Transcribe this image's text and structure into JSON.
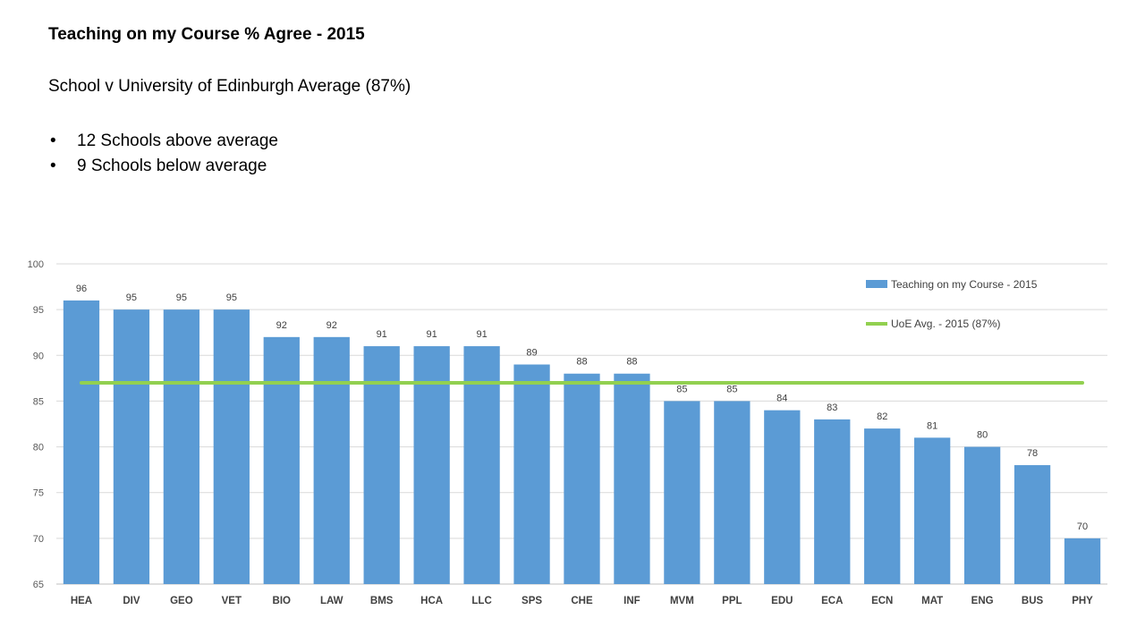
{
  "slide": {
    "title": "Teaching on my Course % Agree - 2015",
    "subtitle": "School v University of Edinburgh Average (87%)",
    "bullets": [
      "12 Schools above average",
      "9 Schools below average"
    ],
    "bullet_symbol": "•"
  },
  "chart_data": {
    "type": "bar",
    "categories": [
      "HEA",
      "DIV",
      "GEO",
      "VET",
      "BIO",
      "LAW",
      "BMS",
      "HCA",
      "LLC",
      "SPS",
      "CHE",
      "INF",
      "MVM",
      "PPL",
      "EDU",
      "ECA",
      "ECN",
      "MAT",
      "ENG",
      "BUS",
      "PHY"
    ],
    "series": [
      {
        "name": "Teaching on my Course - 2015",
        "values": [
          96,
          95,
          95,
          95,
          92,
          92,
          91,
          91,
          91,
          89,
          88,
          88,
          85,
          85,
          84,
          83,
          82,
          81,
          80,
          78,
          70
        ],
        "color": "#5B9BD5"
      }
    ],
    "reference_line": {
      "name": "UoE Avg. - 2015 (87%)",
      "value": 87,
      "color": "#92D050"
    },
    "yticks": [
      65,
      70,
      75,
      80,
      85,
      90,
      95,
      100
    ],
    "ylim": [
      65,
      100
    ],
    "grid": true,
    "legend_position": "top-right",
    "data_labels": true
  }
}
